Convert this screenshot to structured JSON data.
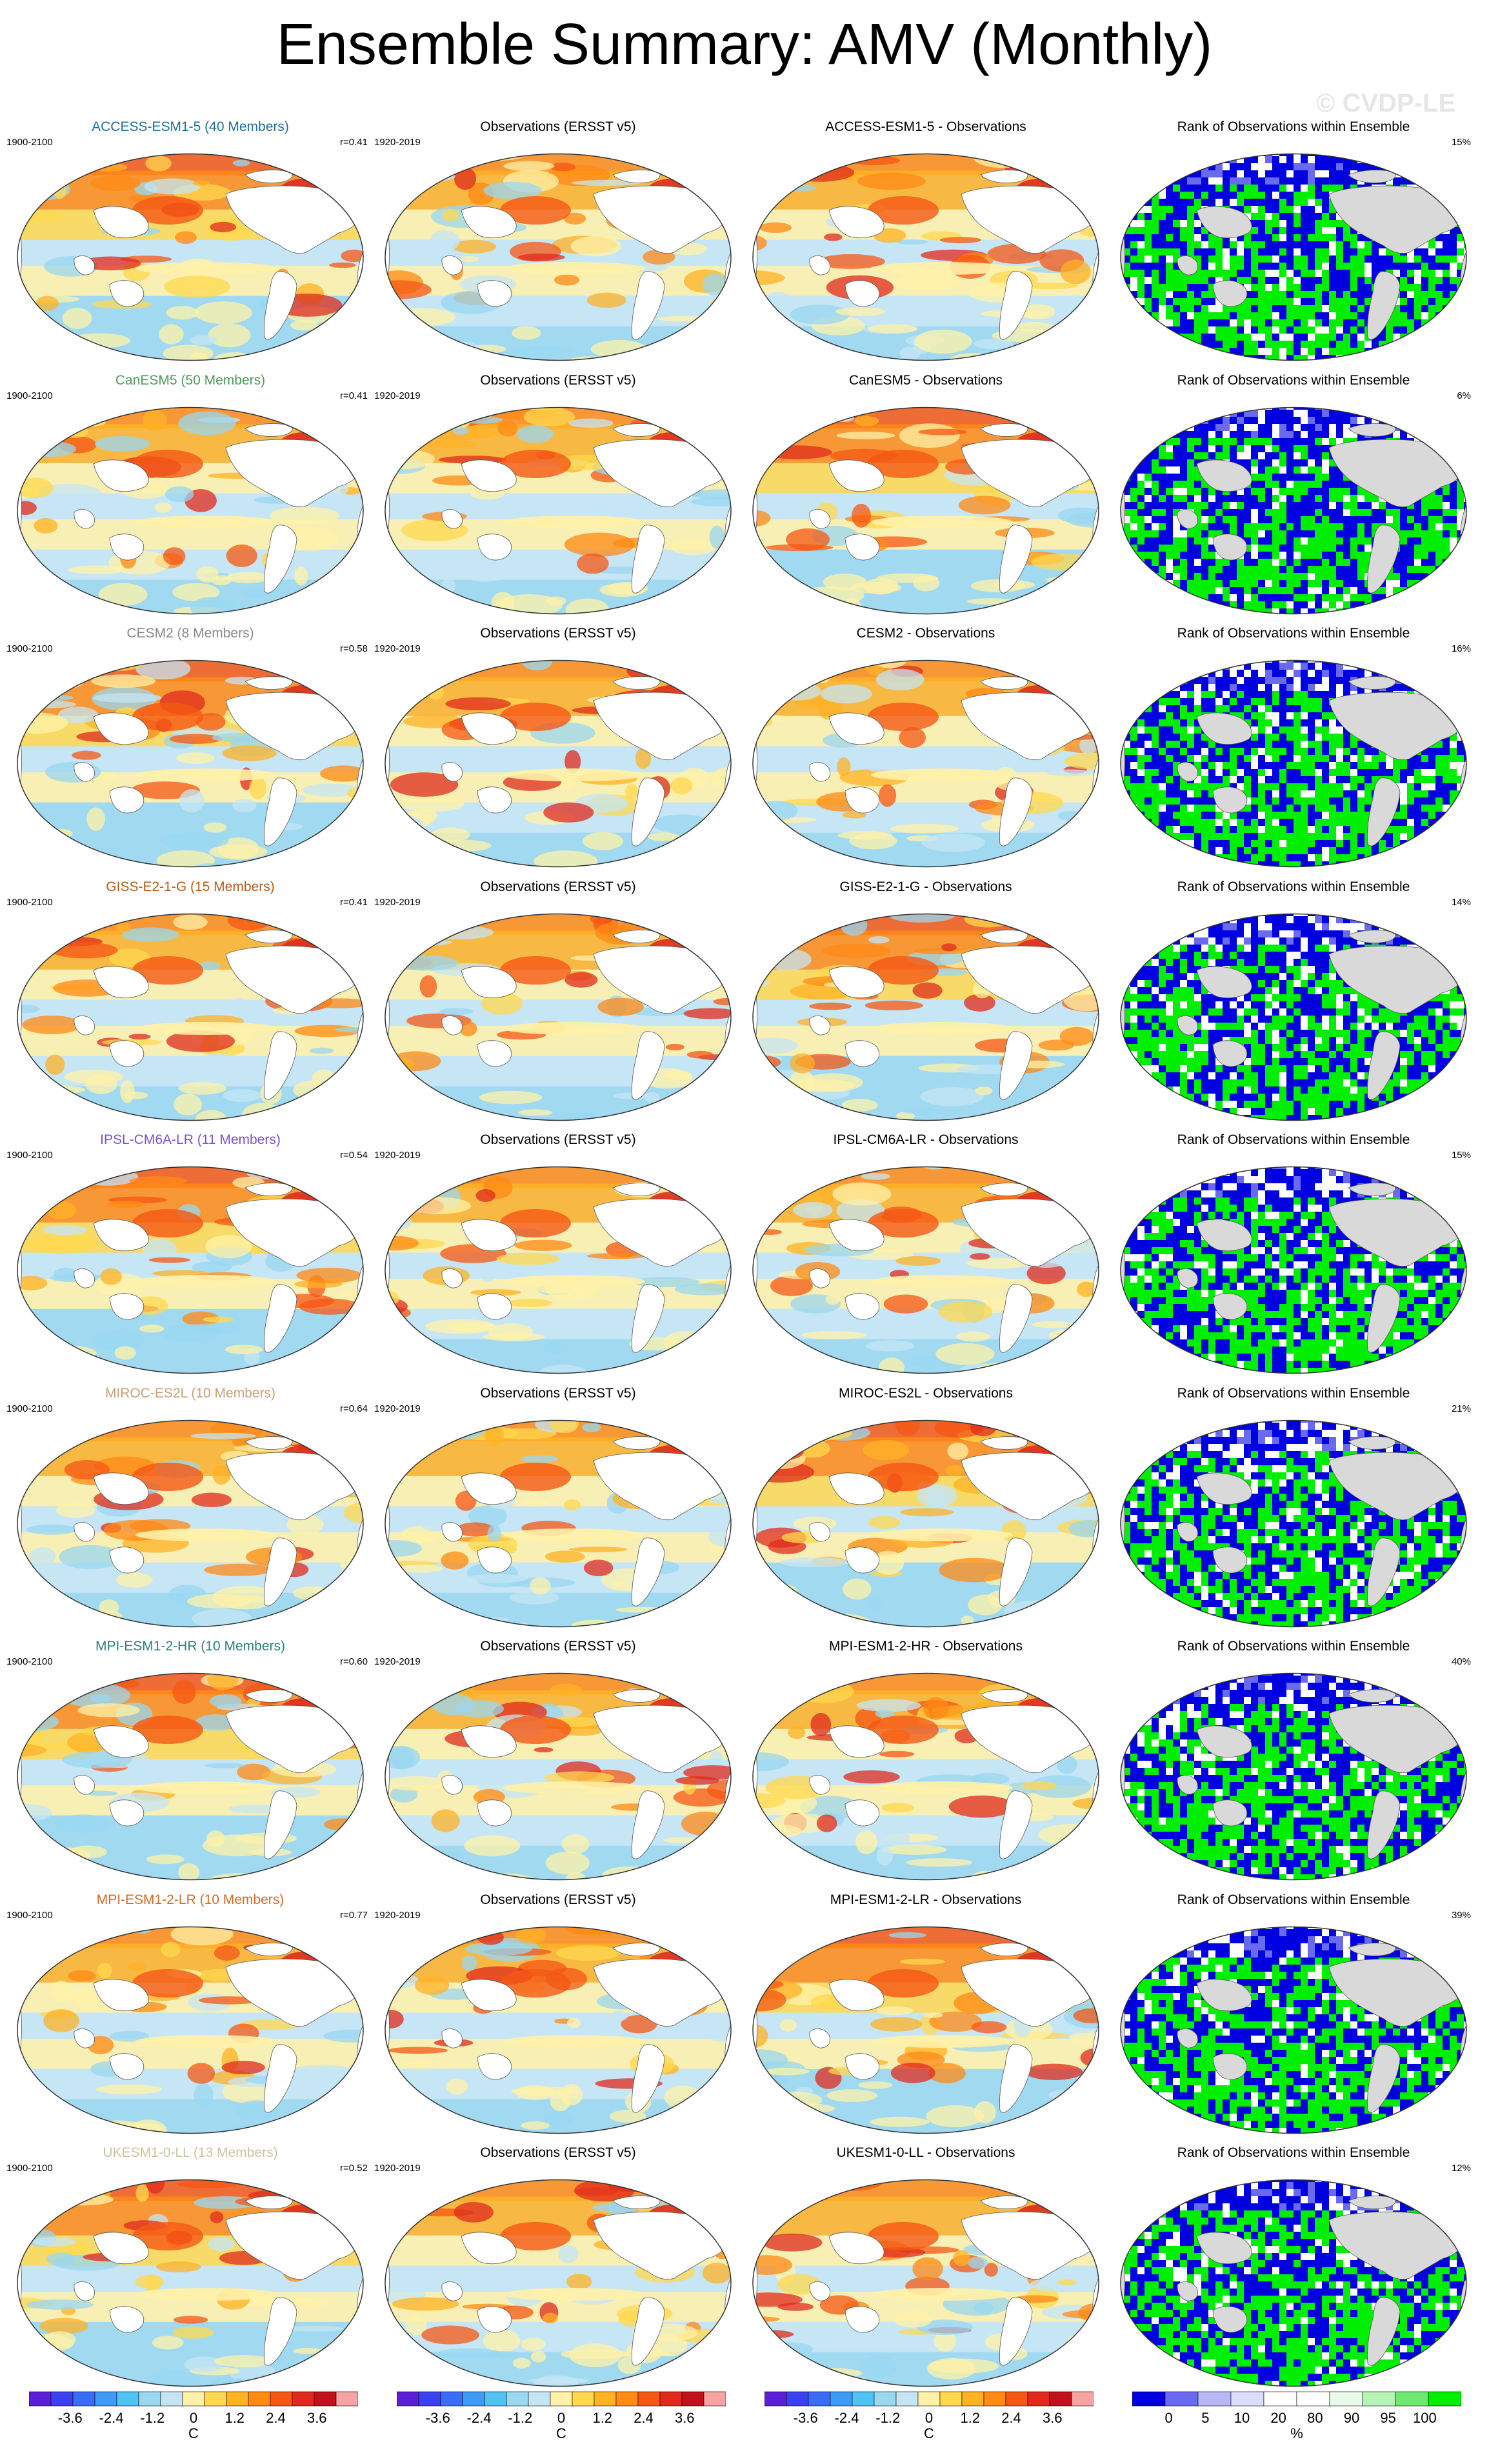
{
  "page": {
    "title": "Ensemble Summary: AMV (Monthly)",
    "watermark": "© CVDP-LE"
  },
  "colors": {
    "land": "#ffffff",
    "rank_land": "#d9d9d9",
    "map_border": "#333333",
    "sst_scale": [
      "#5b1fd6",
      "#3b40f0",
      "#3b6cf5",
      "#3f9af5",
      "#52c1f3",
      "#9ad7f0",
      "#c6e5f4",
      "#fff1a8",
      "#ffd84d",
      "#ffb224",
      "#ff8a14",
      "#f55714",
      "#e02b1c",
      "#c2101d",
      "#f7a3a3"
    ],
    "rank_scale": [
      "#0000e0",
      "#6a6af0",
      "#b7b7f5",
      "#dcdcfb",
      "#ffffff",
      "#ffffff",
      "#e8fbe8",
      "#b7f2b7",
      "#6ee86e",
      "#00ee00"
    ]
  },
  "rows": [
    {
      "model": "ACCESS-ESM1-5 (40 Members)",
      "model_color": "#1a6e9e",
      "period": "1900-2100",
      "r": "r=0.41",
      "diff_title": "ACCESS-ESM1-5 - Observations",
      "rank_pct": "15%"
    },
    {
      "model": "CanESM5 (50 Members)",
      "model_color": "#4f9a5a",
      "period": "1900-2100",
      "r": "r=0.41",
      "diff_title": "CanESM5 - Observations",
      "rank_pct": "6%"
    },
    {
      "model": "CESM2 (8 Members)",
      "model_color": "#8a8a8a",
      "period": "1900-2100",
      "r": "r=0.58",
      "diff_title": "CESM2 - Observations",
      "rank_pct": "16%"
    },
    {
      "model": "GISS-E2-1-G (15 Members)",
      "model_color": "#b85a14",
      "period": "1900-2100",
      "r": "r=0.41",
      "diff_title": "GISS-E2-1-G - Observations",
      "rank_pct": "14%"
    },
    {
      "model": "IPSL-CM6A-LR (11 Members)",
      "model_color": "#7a4fd0",
      "period": "1900-2100",
      "r": "r=0.54",
      "diff_title": "IPSL-CM6A-LR - Observations",
      "rank_pct": "15%"
    },
    {
      "model": "MIROC-ES2L (10 Members)",
      "model_color": "#c8a078",
      "period": "1900-2100",
      "r": "r=0.64",
      "diff_title": "MIROC-ES2L - Observations",
      "rank_pct": "21%"
    },
    {
      "model": "MPI-ESM1-2-HR (10 Members)",
      "model_color": "#2e7f7a",
      "period": "1900-2100",
      "r": "r=0.60",
      "diff_title": "MPI-ESM1-2-HR - Observations",
      "rank_pct": "40%"
    },
    {
      "model": "MPI-ESM1-2-LR (10 Members)",
      "model_color": "#d06a2a",
      "period": "1900-2100",
      "r": "r=0.77",
      "diff_title": "MPI-ESM1-2-LR - Observations",
      "rank_pct": "39%"
    },
    {
      "model": "UKESM1-0-LL (13 Members)",
      "model_color": "#c8c4a0",
      "period": "1900-2100",
      "r": "r=0.52",
      "diff_title": "UKESM1-0-LL - Observations",
      "rank_pct": "12%"
    }
  ],
  "observations": {
    "title": "Observations (ERSST v5)",
    "period": "1920-2019"
  },
  "rank": {
    "title": "Rank of Observations within Ensemble"
  },
  "colorbars": {
    "sst": {
      "labels": [
        "-3.6",
        "-2.4",
        "-1.2",
        "0",
        "1.2",
        "2.4",
        "3.6"
      ],
      "units": "C"
    },
    "rank": {
      "labels": [
        "0",
        "5",
        "10",
        "20",
        "80",
        "90",
        "95",
        "100"
      ],
      "units": "%"
    }
  }
}
